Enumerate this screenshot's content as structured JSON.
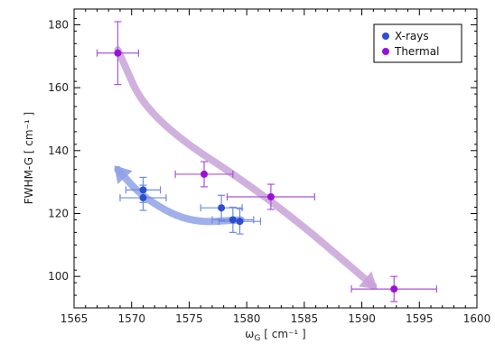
{
  "chart_data": {
    "type": "scatter",
    "xlabel": "ω",
    "xlabel_sub": "G",
    "xlabel_units": "[ cm⁻¹ ]",
    "ylabel": "FWHM-G  [ cm⁻¹ ]",
    "xlim": [
      1565,
      1600
    ],
    "ylim": [
      90,
      185
    ],
    "xticks": [
      1565,
      1570,
      1575,
      1580,
      1585,
      1590,
      1595,
      1600
    ],
    "yticks": [
      100,
      120,
      140,
      160,
      180
    ],
    "legend_position": "top-right",
    "series": [
      {
        "name": "X-rays",
        "color": "#2b4fd0",
        "errcolor": "#6f8ae0",
        "points": [
          {
            "x": 1571.0,
            "y": 127.5,
            "xerr": 1.5,
            "yerr": 4
          },
          {
            "x": 1571.0,
            "y": 125.0,
            "xerr": 2.0,
            "yerr": 4
          },
          {
            "x": 1577.8,
            "y": 121.8,
            "xerr": 1.8,
            "yerr": 4
          },
          {
            "x": 1578.8,
            "y": 118.0,
            "xerr": 1.8,
            "yerr": 4
          },
          {
            "x": 1579.4,
            "y": 117.5,
            "xerr": 1.8,
            "yerr": 4
          }
        ]
      },
      {
        "name": "Thermal",
        "color": "#9b10d8",
        "errcolor": "#a955d8",
        "points": [
          {
            "x": 1568.8,
            "y": 171.0,
            "xerr": 1.8,
            "yerr": 10
          },
          {
            "x": 1576.3,
            "y": 132.5,
            "xerr": 2.5,
            "yerr": 4
          },
          {
            "x": 1582.1,
            "y": 125.3,
            "xerr": 3.8,
            "yerr": 4
          },
          {
            "x": 1592.8,
            "y": 96.0,
            "xerr": 3.7,
            "yerr": 4
          }
        ]
      }
    ],
    "arrows": [
      {
        "color": "#c8a3d8",
        "path": [
          [
            1568.8,
            172
          ],
          [
            1571.5,
            150
          ],
          [
            1582,
            125
          ],
          [
            1591,
            97
          ]
        ]
      },
      {
        "color": "#8fa2e6",
        "path": [
          [
            1579.5,
            118
          ],
          [
            1575,
            117
          ],
          [
            1571,
            125
          ],
          [
            1568.8,
            134
          ]
        ]
      }
    ]
  }
}
